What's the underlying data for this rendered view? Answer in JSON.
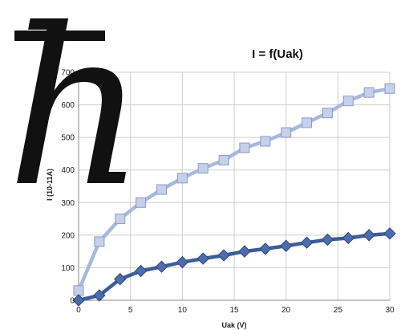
{
  "logo": {
    "glyph": "h",
    "name": "planck-constant-h-bar-logo"
  },
  "chart_data": {
    "type": "line",
    "title": "I = f(Uak)",
    "xlabel": "Uak (V)",
    "ylabel": "I (10-11A)",
    "xlim": [
      0,
      30
    ],
    "ylim": [
      0,
      700
    ],
    "xticks": [
      0,
      5,
      10,
      15,
      20,
      25,
      30
    ],
    "yticks": [
      0,
      100,
      200,
      300,
      400,
      500,
      600,
      700
    ],
    "grid": {
      "horizontal": true,
      "vertical": true
    },
    "series": [
      {
        "marker": "square",
        "color": "#a9b8dc",
        "marker_fill": "#c5d0ea",
        "x": [
          0,
          2,
          4,
          6,
          8,
          10,
          12,
          14,
          16,
          18,
          20,
          22,
          24,
          26,
          28,
          30
        ],
        "y": [
          30,
          180,
          250,
          300,
          340,
          375,
          405,
          430,
          468,
          488,
          515,
          545,
          575,
          612,
          638,
          650
        ]
      },
      {
        "marker": "diamond",
        "color": "#3f5e99",
        "marker_fill": "#4d6cab",
        "x": [
          0,
          2,
          4,
          6,
          8,
          10,
          12,
          14,
          16,
          18,
          20,
          22,
          24,
          26,
          28,
          30
        ],
        "y": [
          0,
          15,
          65,
          90,
          103,
          117,
          128,
          138,
          150,
          158,
          167,
          177,
          186,
          191,
          200,
          205
        ]
      }
    ]
  }
}
